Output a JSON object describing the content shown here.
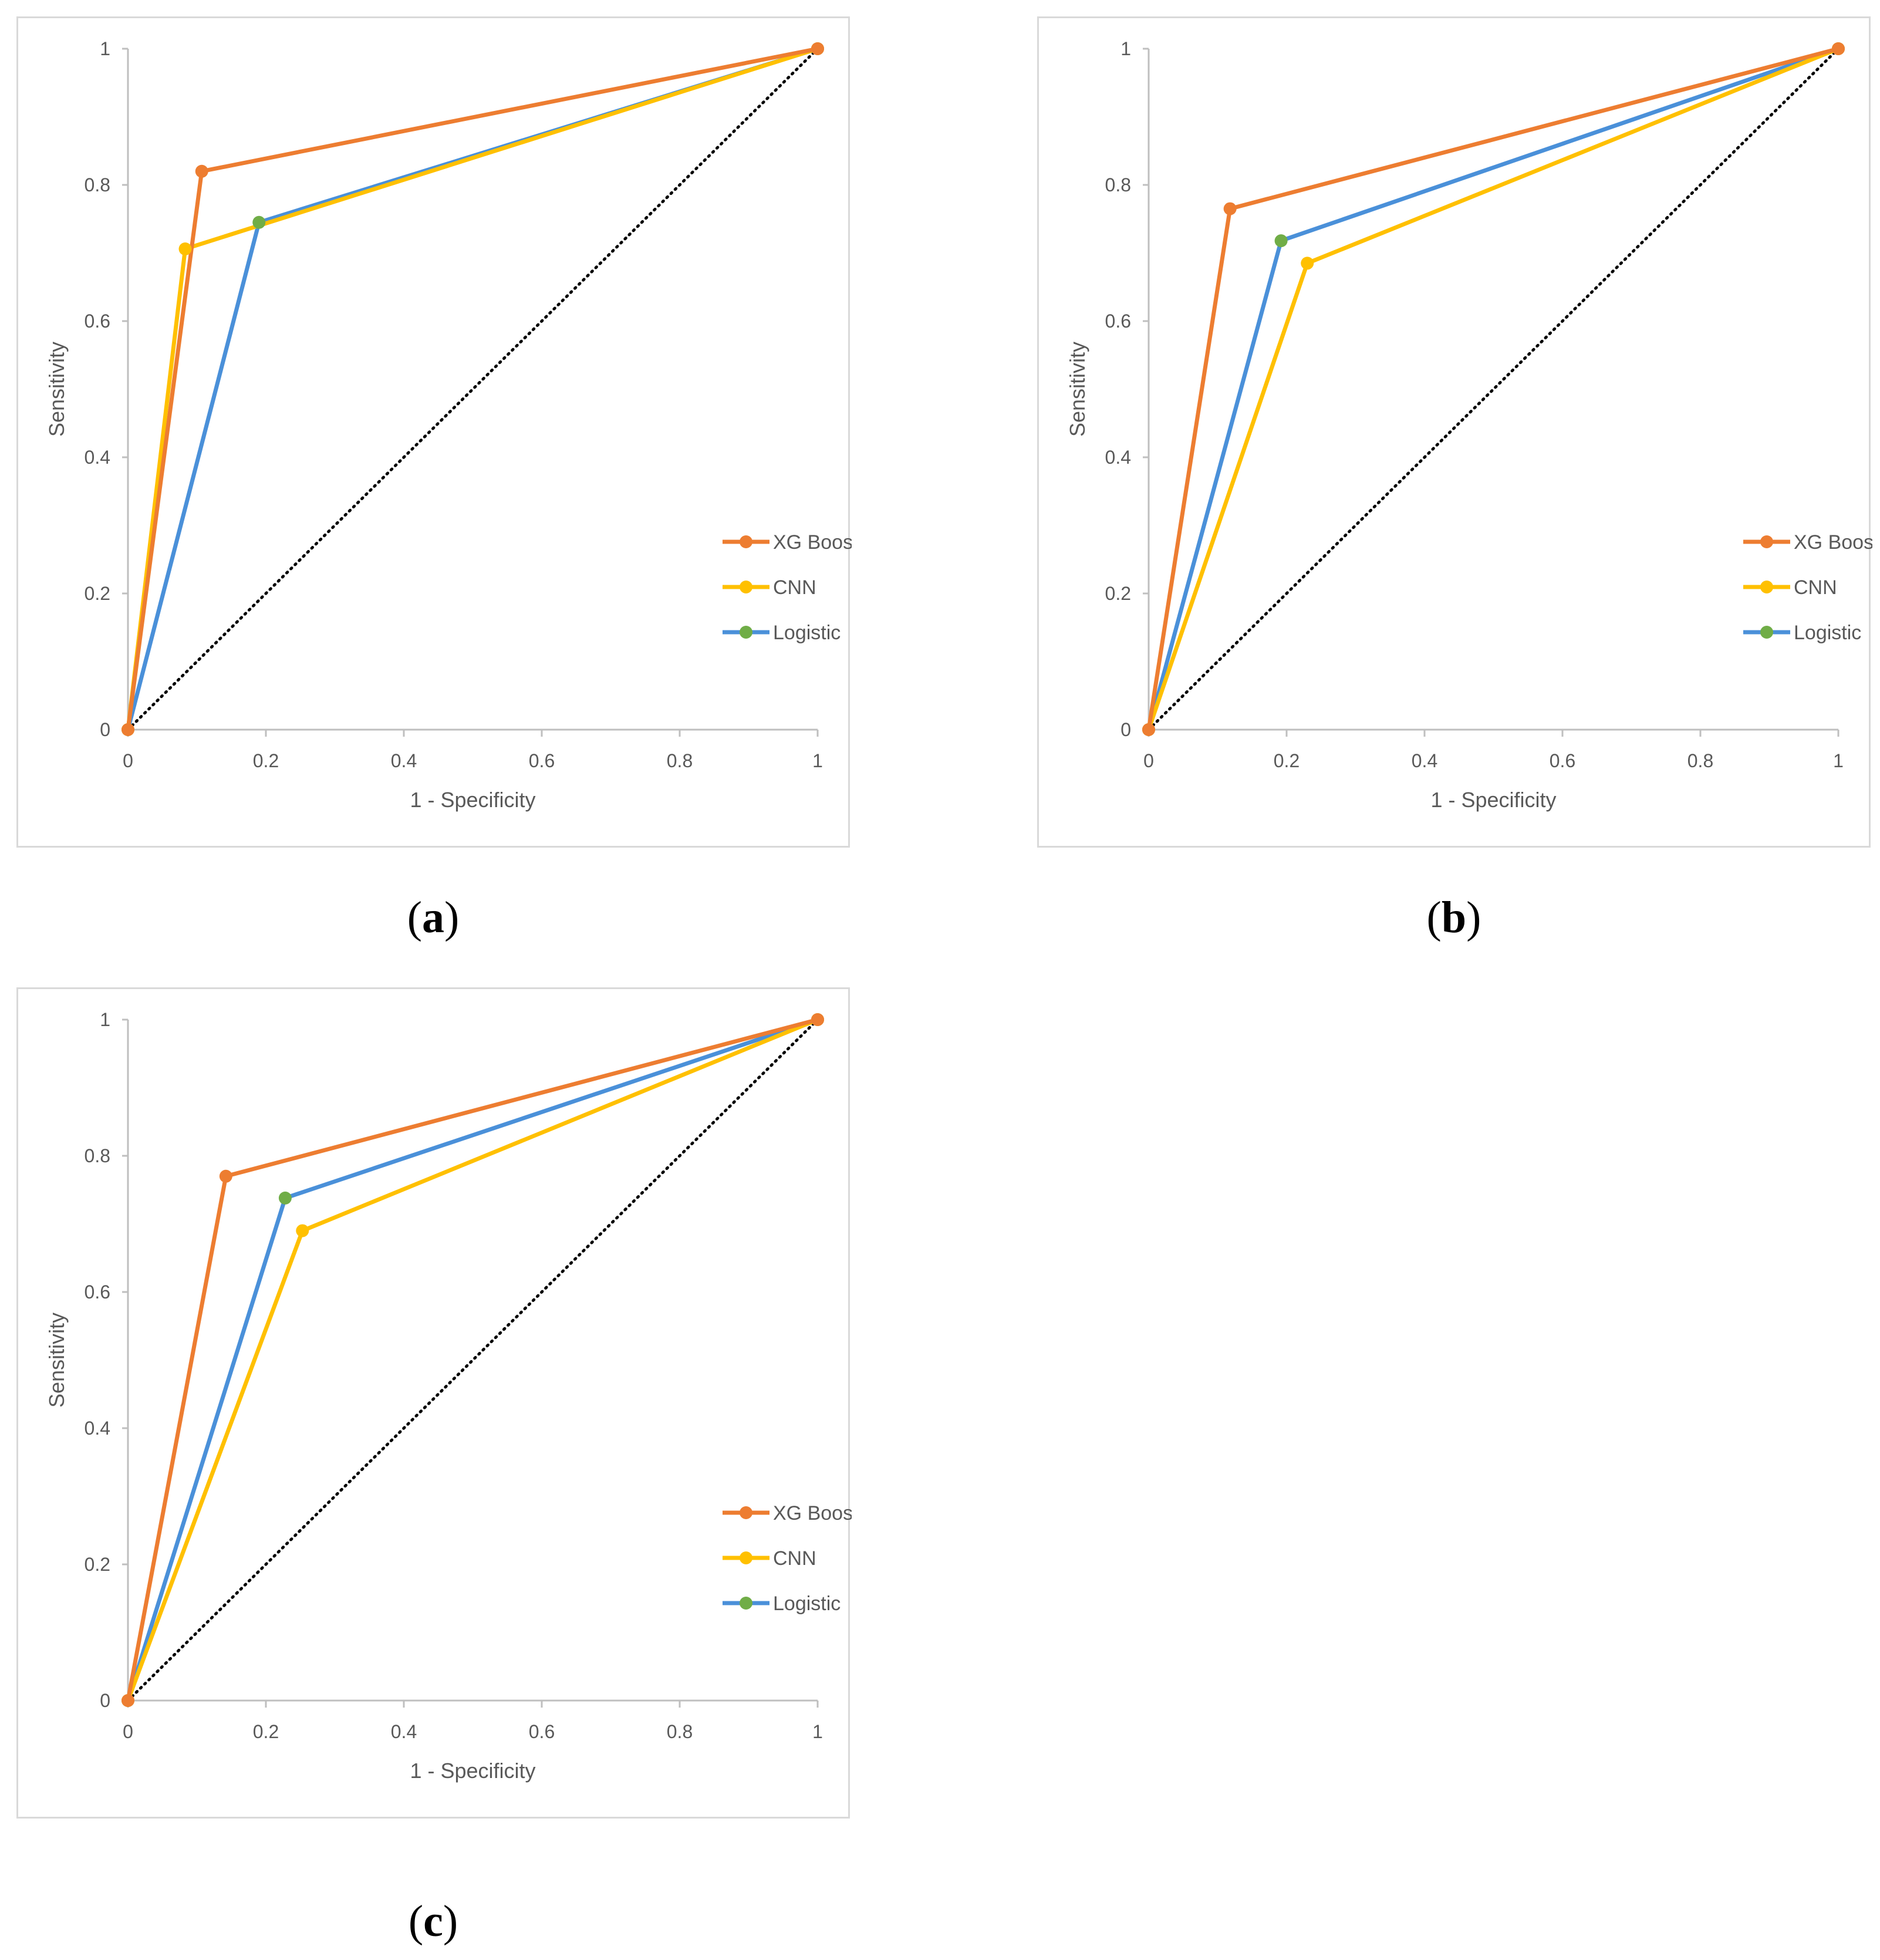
{
  "colors": {
    "xgboost_line": "#ED7D31",
    "xgboost_marker": "#ED7D31",
    "cnn_line": "#FFC000",
    "cnn_marker": "#FFC000",
    "logistic_line": "#4A90D9",
    "logistic_marker": "#70AD47",
    "diagonal": "#000000",
    "axis": "#bfbfbf"
  },
  "captions": {
    "a": "a",
    "b": "b",
    "c": "c"
  },
  "chart_data": [
    {
      "id": "a",
      "type": "line",
      "xlabel": "1 - Specificity",
      "ylabel": "Sensitivity",
      "xlim": [
        0,
        1
      ],
      "ylim": [
        0,
        1
      ],
      "xticks": [
        "0",
        "0.2",
        "0.4",
        "0.6",
        "0.8",
        "1"
      ],
      "yticks": [
        "0",
        "0.2",
        "0.4",
        "0.6",
        "0.8",
        "1"
      ],
      "legend_position": "bottom-right",
      "series": [
        {
          "key": "xgboost",
          "name": "XG Boost",
          "x": [
            0,
            0.107,
            1
          ],
          "y": [
            0,
            0.82,
            1
          ]
        },
        {
          "key": "cnn",
          "name": "CNN",
          "x": [
            0,
            0.083,
            1
          ],
          "y": [
            0,
            0.706,
            1
          ]
        },
        {
          "key": "logistic",
          "name": "Logistic",
          "x": [
            0,
            0.19,
            1
          ],
          "y": [
            0,
            0.745,
            1
          ]
        }
      ]
    },
    {
      "id": "b",
      "type": "line",
      "xlabel": "1 - Specificity",
      "ylabel": "Sensitivity",
      "xlim": [
        0,
        1
      ],
      "ylim": [
        0,
        1
      ],
      "xticks": [
        "0",
        "0.2",
        "0.4",
        "0.6",
        "0.8",
        "1"
      ],
      "yticks": [
        "0",
        "0.2",
        "0.4",
        "0.6",
        "0.8",
        "1"
      ],
      "legend_position": "bottom-right",
      "series": [
        {
          "key": "xgboost",
          "name": "XG Boost",
          "x": [
            0,
            0.118,
            1
          ],
          "y": [
            0,
            0.765,
            1
          ]
        },
        {
          "key": "cnn",
          "name": "CNN",
          "x": [
            0,
            0.23,
            1
          ],
          "y": [
            0,
            0.685,
            1
          ]
        },
        {
          "key": "logistic",
          "name": "Logistic",
          "x": [
            0,
            0.192,
            1
          ],
          "y": [
            0,
            0.718,
            1
          ]
        }
      ]
    },
    {
      "id": "c",
      "type": "line",
      "xlabel": "1 - Specificity",
      "ylabel": "Sensitivity",
      "xlim": [
        0,
        1
      ],
      "ylim": [
        0,
        1
      ],
      "xticks": [
        "0",
        "0.2",
        "0.4",
        "0.6",
        "0.8",
        "1"
      ],
      "yticks": [
        "0",
        "0.2",
        "0.4",
        "0.6",
        "0.8",
        "1"
      ],
      "legend_position": "bottom-right",
      "series": [
        {
          "key": "xgboost",
          "name": "XG Boost",
          "x": [
            0,
            0.142,
            1
          ],
          "y": [
            0,
            0.77,
            1
          ]
        },
        {
          "key": "cnn",
          "name": "CNN",
          "x": [
            0,
            0.253,
            1
          ],
          "y": [
            0,
            0.69,
            1
          ]
        },
        {
          "key": "logistic",
          "name": "Logistic",
          "x": [
            0,
            0.228,
            1
          ],
          "y": [
            0,
            0.738,
            1
          ]
        }
      ]
    }
  ]
}
